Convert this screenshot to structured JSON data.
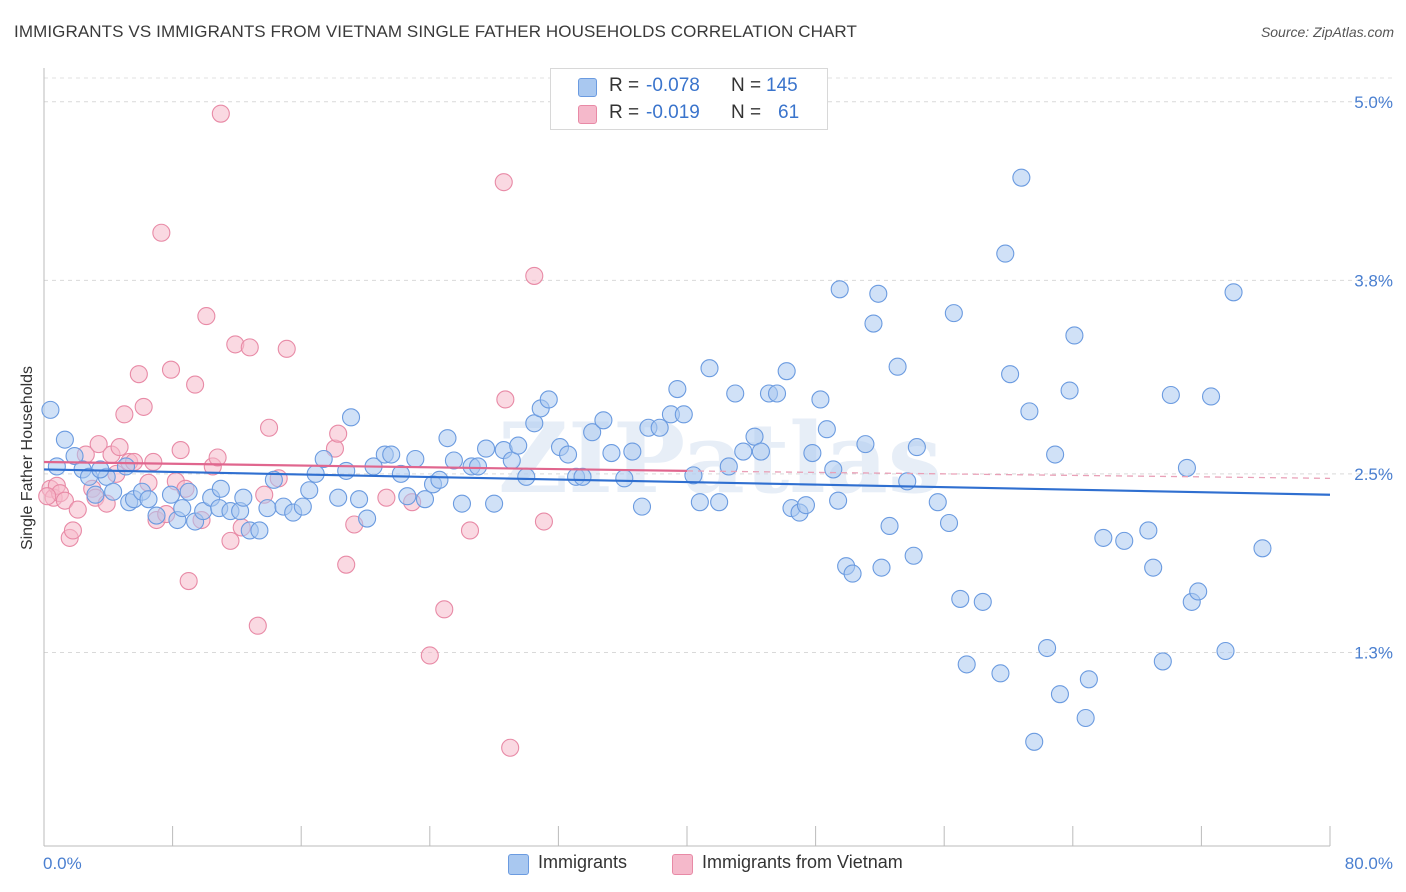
{
  "title": "IMMIGRANTS VS IMMIGRANTS FROM VIETNAM SINGLE FATHER HOUSEHOLDS CORRELATION CHART",
  "source": "Source: ZipAtlas.com",
  "watermark": "ZIPatlas",
  "legend_top": {
    "rows": [
      {
        "r_label": "R =",
        "r_value": "-0.078",
        "n_label": "N =",
        "n_value": "145",
        "color": "#a9c8f0"
      },
      {
        "r_label": "R =",
        "r_value": "-0.019",
        "n_label": "N =",
        "n_value": "61",
        "color": "#f5b9cb"
      }
    ]
  },
  "legend_bottom": [
    {
      "label": "Immigrants",
      "color": "#a9c8f0"
    },
    {
      "label": "Immigrants from Vietnam",
      "color": "#f5b9cb"
    }
  ],
  "chart_data": {
    "type": "scatter",
    "title": "IMMIGRANTS VS IMMIGRANTS FROM VIETNAM SINGLE FATHER HOUSEHOLDS CORRELATION CHART",
    "xlabel": "",
    "ylabel": "Single Father Households",
    "xlim": [
      0,
      80
    ],
    "ylim": [
      0,
      5.2
    ],
    "x_tick_labels": [
      "0.0%",
      "80.0%"
    ],
    "y_ticks": [
      1.3,
      2.5,
      3.8,
      5.0
    ],
    "y_tick_labels": [
      "1.3%",
      "2.5%",
      "3.8%",
      "5.0%"
    ],
    "grid": true,
    "series": [
      {
        "name": "Immigrants",
        "color": "#6b9be0",
        "fill": "#a9c8f0",
        "trend": {
          "x": [
            0,
            80
          ],
          "y": [
            2.53,
            2.36
          ]
        },
        "points": [
          [
            0.4,
            2.93
          ],
          [
            1.3,
            2.73
          ],
          [
            1.9,
            2.62
          ],
          [
            2.4,
            2.53
          ],
          [
            2.8,
            2.48
          ],
          [
            3.2,
            2.36
          ],
          [
            3.9,
            2.48
          ],
          [
            4.3,
            2.38
          ],
          [
            5.3,
            2.31
          ],
          [
            5.6,
            2.33
          ],
          [
            6.1,
            2.38
          ],
          [
            6.5,
            2.33
          ],
          [
            7.0,
            2.22
          ],
          [
            7.9,
            2.36
          ],
          [
            8.3,
            2.19
          ],
          [
            8.6,
            2.27
          ],
          [
            9.4,
            2.18
          ],
          [
            9.9,
            2.25
          ],
          [
            10.4,
            2.34
          ],
          [
            10.9,
            2.27
          ],
          [
            11.6,
            2.25
          ],
          [
            12.2,
            2.25
          ],
          [
            12.4,
            2.34
          ],
          [
            12.8,
            2.12
          ],
          [
            13.4,
            2.12
          ],
          [
            13.9,
            2.27
          ],
          [
            14.3,
            2.46
          ],
          [
            14.9,
            2.28
          ],
          [
            15.5,
            2.24
          ],
          [
            16.1,
            2.28
          ],
          [
            16.5,
            2.39
          ],
          [
            16.9,
            2.5
          ],
          [
            17.4,
            2.6
          ],
          [
            18.3,
            2.34
          ],
          [
            18.8,
            2.52
          ],
          [
            19.1,
            2.88
          ],
          [
            19.6,
            2.33
          ],
          [
            20.1,
            2.2
          ],
          [
            20.5,
            2.55
          ],
          [
            21.2,
            2.63
          ],
          [
            21.6,
            2.63
          ],
          [
            22.2,
            2.5
          ],
          [
            22.6,
            2.35
          ],
          [
            23.1,
            2.6
          ],
          [
            23.7,
            2.33
          ],
          [
            24.2,
            2.43
          ],
          [
            24.6,
            2.46
          ],
          [
            25.1,
            2.74
          ],
          [
            25.5,
            2.59
          ],
          [
            26.0,
            2.3
          ],
          [
            26.6,
            2.55
          ],
          [
            27.0,
            2.55
          ],
          [
            27.5,
            2.67
          ],
          [
            28.0,
            2.3
          ],
          [
            28.6,
            2.66
          ],
          [
            29.1,
            2.59
          ],
          [
            29.5,
            2.69
          ],
          [
            30.0,
            2.48
          ],
          [
            30.5,
            2.84
          ],
          [
            30.9,
            2.94
          ],
          [
            31.4,
            3.0
          ],
          [
            32.1,
            2.68
          ],
          [
            32.6,
            2.63
          ],
          [
            33.1,
            2.48
          ],
          [
            33.5,
            2.48
          ],
          [
            34.1,
            2.78
          ],
          [
            34.8,
            2.86
          ],
          [
            35.3,
            2.64
          ],
          [
            36.1,
            2.47
          ],
          [
            36.6,
            2.65
          ],
          [
            37.2,
            2.28
          ],
          [
            37.6,
            2.81
          ],
          [
            38.3,
            2.81
          ],
          [
            39.0,
            2.9
          ],
          [
            39.4,
            3.07
          ],
          [
            39.8,
            2.9
          ],
          [
            40.4,
            2.49
          ],
          [
            40.8,
            2.31
          ],
          [
            41.4,
            3.21
          ],
          [
            42.0,
            2.31
          ],
          [
            42.6,
            2.55
          ],
          [
            43.0,
            3.04
          ],
          [
            43.5,
            2.65
          ],
          [
            44.2,
            2.75
          ],
          [
            44.6,
            2.65
          ],
          [
            45.1,
            3.04
          ],
          [
            45.6,
            3.04
          ],
          [
            46.2,
            3.19
          ],
          [
            46.5,
            2.27
          ],
          [
            47.0,
            2.24
          ],
          [
            47.4,
            2.29
          ],
          [
            47.8,
            2.64
          ],
          [
            48.3,
            3.0
          ],
          [
            48.7,
            2.8
          ],
          [
            49.1,
            2.53
          ],
          [
            49.4,
            2.32
          ],
          [
            49.9,
            1.88
          ],
          [
            49.5,
            3.74
          ],
          [
            50.3,
            1.83
          ],
          [
            51.1,
            2.7
          ],
          [
            51.6,
            3.51
          ],
          [
            51.9,
            3.71
          ],
          [
            52.1,
            1.87
          ],
          [
            52.6,
            2.15
          ],
          [
            53.1,
            3.22
          ],
          [
            53.7,
            2.45
          ],
          [
            54.1,
            1.95
          ],
          [
            54.3,
            2.68
          ],
          [
            55.6,
            2.31
          ],
          [
            56.3,
            2.17
          ],
          [
            56.6,
            3.58
          ],
          [
            57.0,
            1.66
          ],
          [
            57.4,
            1.22
          ],
          [
            58.4,
            1.64
          ],
          [
            59.5,
            1.16
          ],
          [
            59.8,
            3.98
          ],
          [
            60.1,
            3.17
          ],
          [
            60.8,
            4.49
          ],
          [
            61.3,
            2.92
          ],
          [
            61.6,
            0.7
          ],
          [
            62.4,
            1.33
          ],
          [
            62.9,
            2.63
          ],
          [
            63.2,
            1.02
          ],
          [
            63.8,
            3.06
          ],
          [
            64.1,
            3.43
          ],
          [
            64.8,
            0.86
          ],
          [
            65.0,
            1.12
          ],
          [
            65.9,
            2.07
          ],
          [
            67.2,
            2.05
          ],
          [
            68.7,
            2.12
          ],
          [
            69.0,
            1.87
          ],
          [
            69.6,
            1.24
          ],
          [
            70.1,
            3.03
          ],
          [
            71.1,
            2.54
          ],
          [
            71.4,
            1.64
          ],
          [
            71.8,
            1.71
          ],
          [
            72.6,
            3.02
          ],
          [
            73.5,
            1.31
          ],
          [
            74.0,
            3.72
          ],
          [
            75.8,
            2.0
          ],
          [
            0.8,
            2.55
          ],
          [
            3.5,
            2.53
          ],
          [
            5.1,
            2.55
          ],
          [
            9.0,
            2.38
          ],
          [
            11.0,
            2.4
          ]
        ]
      },
      {
        "name": "Immigrants from Vietnam",
        "color": "#e88aa6",
        "fill": "#f5b9cb",
        "trend": {
          "x": [
            0,
            40
          ],
          "y": [
            2.58,
            2.52
          ],
          "dash_to": [
            80,
            2.47
          ]
        },
        "points": [
          [
            0.4,
            2.4
          ],
          [
            0.6,
            2.34
          ],
          [
            0.8,
            2.42
          ],
          [
            1.0,
            2.37
          ],
          [
            1.3,
            2.32
          ],
          [
            1.6,
            2.07
          ],
          [
            1.8,
            2.12
          ],
          [
            2.1,
            2.26
          ],
          [
            2.6,
            2.63
          ],
          [
            3.0,
            2.4
          ],
          [
            3.2,
            2.34
          ],
          [
            3.4,
            2.7
          ],
          [
            3.9,
            2.3
          ],
          [
            4.2,
            2.63
          ],
          [
            4.5,
            2.5
          ],
          [
            4.7,
            2.68
          ],
          [
            5.0,
            2.9
          ],
          [
            5.3,
            2.58
          ],
          [
            5.6,
            2.58
          ],
          [
            5.9,
            3.17
          ],
          [
            6.2,
            2.95
          ],
          [
            6.5,
            2.44
          ],
          [
            6.8,
            2.58
          ],
          [
            7.0,
            2.19
          ],
          [
            7.3,
            4.12
          ],
          [
            7.6,
            2.23
          ],
          [
            7.9,
            3.2
          ],
          [
            8.2,
            2.45
          ],
          [
            8.5,
            2.66
          ],
          [
            8.8,
            2.4
          ],
          [
            9.0,
            1.78
          ],
          [
            9.4,
            3.1
          ],
          [
            9.8,
            2.19
          ],
          [
            10.1,
            3.56
          ],
          [
            10.5,
            2.55
          ],
          [
            10.8,
            2.61
          ],
          [
            11.0,
            4.92
          ],
          [
            11.6,
            2.05
          ],
          [
            11.9,
            3.37
          ],
          [
            12.3,
            2.14
          ],
          [
            12.8,
            3.35
          ],
          [
            13.3,
            1.48
          ],
          [
            13.7,
            2.36
          ],
          [
            14.0,
            2.81
          ],
          [
            14.6,
            2.47
          ],
          [
            15.1,
            3.34
          ],
          [
            18.1,
            2.67
          ],
          [
            18.3,
            2.77
          ],
          [
            18.8,
            1.89
          ],
          [
            19.3,
            2.16
          ],
          [
            21.3,
            2.34
          ],
          [
            22.9,
            2.31
          ],
          [
            24.0,
            1.28
          ],
          [
            24.9,
            1.59
          ],
          [
            26.5,
            2.12
          ],
          [
            28.6,
            4.46
          ],
          [
            28.7,
            3.0
          ],
          [
            29.0,
            0.66
          ],
          [
            30.5,
            3.83
          ],
          [
            31.1,
            2.18
          ],
          [
            0.2,
            2.35
          ]
        ]
      }
    ]
  }
}
